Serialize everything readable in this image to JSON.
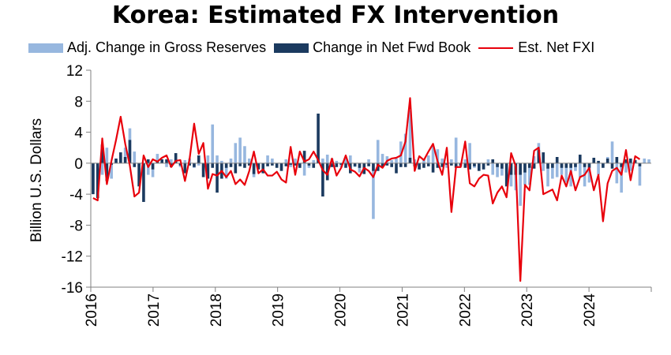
{
  "chart_data": {
    "type": "bar",
    "title": "Korea: Estimated FX Intervention",
    "ylabel": "Billion U.S. Dollars",
    "xlabel": "",
    "ylim": [
      -16,
      12
    ],
    "y_ticks": [
      12,
      8,
      4,
      0,
      -4,
      -8,
      -12,
      -16
    ],
    "x_tick_labels": [
      "2016",
      "2017",
      "2018",
      "2019",
      "2020",
      "2021",
      "2022",
      "2023",
      "2024"
    ],
    "grid": false,
    "legend_position": "top",
    "x_start": "2016-01",
    "x_end": "2024-12",
    "series": [
      {
        "name": "Adj. Change in Gross Reserves",
        "kind": "bar",
        "color": "#97b7df",
        "values": [
          -3.5,
          -2.0,
          -1.5,
          2.0,
          -2.0,
          0.5,
          1.0,
          2.0,
          4.5,
          1.5,
          -0.5,
          -0.3,
          -1.5,
          -1.8,
          1.2,
          0.2,
          -0.5,
          0.5,
          0.5,
          -0.5,
          0.4,
          0.6,
          -0.6,
          -0.3,
          -1.0,
          1.0,
          5.0,
          1.0,
          0.3,
          -2.0,
          0.6,
          2.6,
          3.3,
          2.2,
          0.6,
          -1.8,
          -0.5,
          -0.6,
          1.0,
          0.6,
          -0.5,
          -0.8,
          0.5,
          -0.5,
          0.6,
          -0.6,
          -1.6,
          -0.6,
          0.4,
          0.9,
          0.6,
          1.1,
          0.6,
          0.3,
          -0.5,
          0.6,
          1.0,
          -0.5,
          -1.2,
          -0.5,
          0.5,
          -7.2,
          3.0,
          1.2,
          0.9,
          0.4,
          0.6,
          2.8,
          3.8,
          6.8,
          0.5,
          -0.8,
          0.6,
          1.0,
          2.2,
          1.8,
          0.6,
          -0.6,
          0.5,
          3.3,
          -0.5,
          0.5,
          2.6,
          -0.6,
          -0.8,
          -0.8,
          0.5,
          -1.5,
          -1.8,
          -1.6,
          -1.2,
          -3.0,
          -3.5,
          -5.5,
          -2.8,
          -2.8,
          0.9,
          2.6,
          -1.0,
          -3.0,
          -2.0,
          -1.8,
          -1.5,
          -2.5,
          -3.0,
          -1.0,
          -1.8,
          -3.0,
          -2.5,
          0.5,
          -1.5,
          -0.3,
          0.8,
          2.8,
          -2.6,
          -3.8,
          -1.2,
          -1.0,
          0.2,
          -2.9,
          0.6,
          0.5
        ]
      },
      {
        "name": "Change in Net Fwd Book",
        "kind": "bar",
        "color": "#1b3a5f",
        "values": [
          -4.0,
          -4.5,
          2.4,
          -2.3,
          -0.2,
          0.6,
          1.4,
          0.8,
          3.0,
          -0.5,
          -3.0,
          -5.0,
          0.5,
          -0.8,
          0.3,
          0.5,
          0.5,
          -0.5,
          1.3,
          -0.3,
          -1.3,
          -0.3,
          -0.5,
          1.0,
          -1.8,
          -2.0,
          -0.6,
          -3.8,
          -2.0,
          -0.6,
          -0.5,
          -1.3,
          -0.4,
          -0.6,
          -0.3,
          -1.4,
          -0.8,
          -1.3,
          -0.4,
          -0.3,
          -0.6,
          -1.0,
          -0.4,
          -0.2,
          -0.3,
          -0.6,
          1.6,
          -0.3,
          -0.6,
          6.4,
          -4.3,
          -2.2,
          -0.5,
          -0.5,
          -0.2,
          -0.6,
          -1.3,
          -0.4,
          -0.6,
          -1.4,
          -0.4,
          -1.0,
          -1.0,
          -0.5,
          -0.3,
          -0.5,
          -1.3,
          -0.5,
          -0.5,
          0.7,
          -0.4,
          -0.8,
          -0.6,
          -0.4,
          -1.2,
          -0.6,
          -0.5,
          -0.2,
          -0.3,
          -0.6,
          -0.3,
          -0.6,
          -0.8,
          -0.4,
          -1.0,
          -0.8,
          -0.3,
          0.5,
          -0.5,
          -0.7,
          -3.0,
          -1.5,
          -1.5,
          -1.5,
          -1.2,
          -0.6,
          -0.7,
          1.7,
          1.4,
          -0.7,
          -0.6,
          0.8,
          -0.6,
          -0.6,
          -0.6,
          -0.5,
          1.1,
          -0.5,
          -0.6,
          0.7,
          0.3,
          -0.6,
          0.6,
          -0.7,
          0.8,
          -0.5,
          0.5,
          0.6,
          0.4,
          -0.4
        ]
      },
      {
        "name": "Est. Net FXI",
        "kind": "line",
        "color": "#e8000b",
        "values": [
          -4.5,
          -4.8,
          3.2,
          -2.7,
          0.3,
          3.0,
          6.0,
          2.5,
          -0.3,
          -4.3,
          -3.8,
          1.0,
          -0.5,
          0.5,
          0.2,
          0.7,
          1.0,
          -0.5,
          0.3,
          0.4,
          -2.3,
          0.5,
          5.1,
          1.2,
          2.6,
          -3.3,
          -1.4,
          -1.6,
          -1.0,
          -1.8,
          -1.0,
          -2.7,
          -2.1,
          -2.8,
          -1.0,
          1.5,
          -1.3,
          -0.8,
          -1.6,
          -1.6,
          -1.1,
          -2.1,
          -2.5,
          2.1,
          -1.5,
          1.5,
          0.2,
          0.5,
          1.5,
          0.4,
          -0.9,
          -1.5,
          0.6,
          -1.6,
          -0.6,
          1.0,
          -0.8,
          -1.1,
          -1.7,
          -0.6,
          -1.0,
          -1.8,
          -0.2,
          -0.6,
          0.3,
          0.6,
          0.7,
          1.0,
          2.8,
          8.4,
          -1.0,
          0.9,
          0.4,
          1.5,
          2.5,
          0.2,
          -1.5,
          2.0,
          -6.3,
          -0.5,
          -0.5,
          2.8,
          -2.6,
          -3.0,
          -2.0,
          -1.5,
          -1.6,
          -5.2,
          -3.8,
          -3.0,
          -4.4,
          1.3,
          -0.4,
          -15.2,
          -2.8,
          -3.5,
          1.6,
          2.0,
          -4.0,
          -3.7,
          -3.4,
          -4.8,
          -1.6,
          -3.0,
          -1.0,
          -3.5,
          -1.8,
          -1.5,
          -0.6,
          -3.5,
          -1.5,
          -7.5,
          -2.6,
          -1.0,
          -0.6,
          -1.5,
          1.7,
          -2.2,
          0.9,
          0.5
        ]
      }
    ]
  },
  "legend": {
    "item1": "Adj. Change in Gross Reserves",
    "item2": "Change in Net Fwd Book",
    "item3": "Est. Net FXI"
  }
}
